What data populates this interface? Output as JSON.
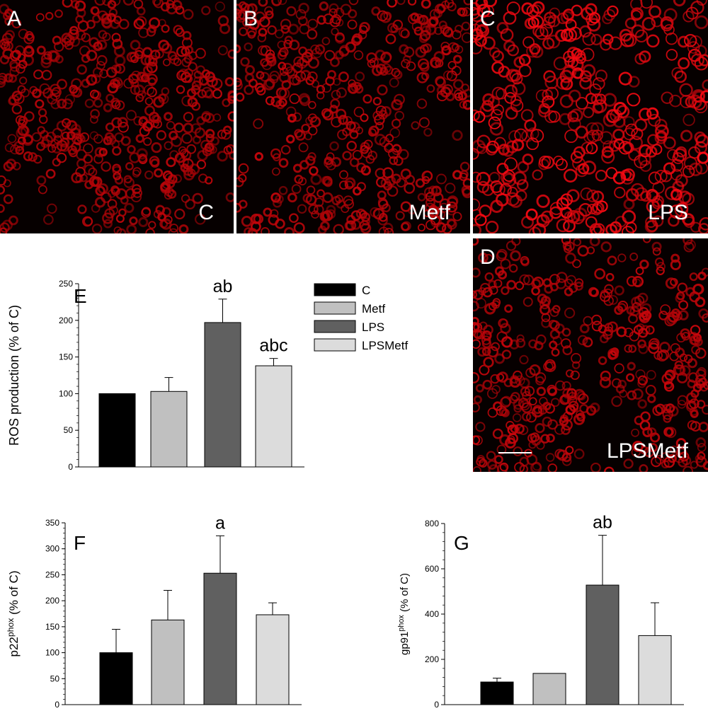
{
  "micrographs": [
    {
      "panel": "A",
      "condition": "C",
      "density": 620,
      "brightness": 0.55
    },
    {
      "panel": "B",
      "condition": "Metf",
      "density": 560,
      "brightness": 0.6
    },
    {
      "panel": "C",
      "condition": "LPS",
      "density": 430,
      "brightness": 1.0
    },
    {
      "panel": "D",
      "condition": "LPSMetf",
      "density": 520,
      "brightness": 0.62
    }
  ],
  "legend": {
    "entries": [
      {
        "label": "C",
        "color": "#000000"
      },
      {
        "label": "Metf",
        "color": "#c0c0c0"
      },
      {
        "label": "LPS",
        "color": "#606060"
      },
      {
        "label": "LPSMetf",
        "color": "#dcdcdc"
      }
    ]
  },
  "chart_data": [
    {
      "type": "bar",
      "panel": "E",
      "categories": [
        "C",
        "Metf",
        "LPS",
        "LPSMetf"
      ],
      "values": [
        100,
        103,
        197,
        138
      ],
      "errors": [
        0,
        19,
        32,
        10
      ],
      "annotations": [
        "",
        "",
        "ab",
        "abc"
      ],
      "colors": [
        "#000000",
        "#c0c0c0",
        "#606060",
        "#dcdcdc"
      ],
      "ylabel": "ROS production (% of C)",
      "ylim": [
        0,
        250
      ],
      "yticks": [
        0,
        50,
        100,
        150,
        200,
        250
      ],
      "grid": false
    },
    {
      "type": "bar",
      "panel": "F",
      "categories": [
        "C",
        "Metf",
        "LPS",
        "LPSMetf"
      ],
      "values": [
        100,
        163,
        253,
        173
      ],
      "errors": [
        45,
        57,
        72,
        23
      ],
      "annotations": [
        "",
        "",
        "a",
        ""
      ],
      "colors": [
        "#000000",
        "#c0c0c0",
        "#606060",
        "#dcdcdc"
      ],
      "ylabel": "p22",
      "ylabel_sup": "phox",
      "ylabel_tail": " (% of C)",
      "ylim": [
        0,
        350
      ],
      "yticks": [
        0,
        50,
        100,
        150,
        200,
        250,
        300,
        350
      ],
      "grid": false
    },
    {
      "type": "bar",
      "panel": "G",
      "categories": [
        "C",
        "Metf",
        "LPS",
        "LPSMetf"
      ],
      "values": [
        100,
        138,
        528,
        305
      ],
      "errors": [
        17,
        0,
        220,
        145
      ],
      "annotations": [
        "",
        "",
        "ab",
        ""
      ],
      "colors": [
        "#000000",
        "#c0c0c0",
        "#606060",
        "#dcdcdc"
      ],
      "ylabel": "gp91",
      "ylabel_sup": "phox",
      "ylabel_tail": " (% of C)",
      "ylim": [
        0,
        800
      ],
      "yticks": [
        0,
        200,
        400,
        600,
        800
      ],
      "grid": false
    }
  ]
}
